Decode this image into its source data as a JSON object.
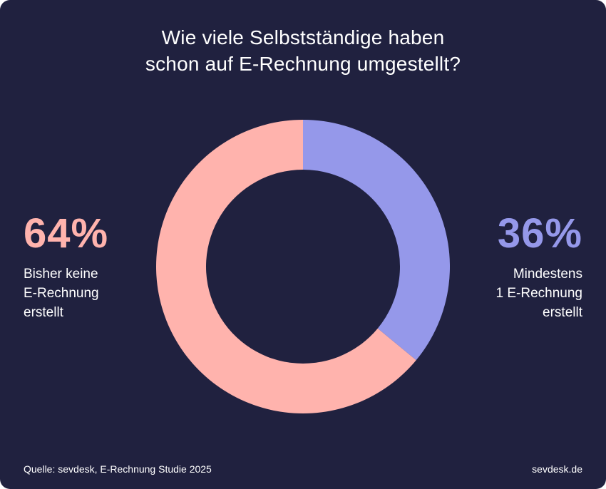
{
  "colors": {
    "background": "#20213f",
    "text": "#ffffff",
    "none_segment": "#ffb3ad",
    "some_segment": "#9598ea"
  },
  "chart_data": {
    "type": "pie",
    "variant": "donut",
    "title": "Wie viele Selbstständige haben schon auf E-Rechnung umgestellt?",
    "title_lines": [
      "Wie viele Selbstständige haben",
      "schon auf E-Rechnung umgestellt?"
    ],
    "start": "top, clockwise",
    "segments": [
      {
        "name": "Mindestens 1 E-Rechnung erstellt",
        "value": 36,
        "label": "36%",
        "description_lines": [
          "Mindestens",
          "1 E-Rechnung",
          "erstellt"
        ],
        "color": "#9598ea"
      },
      {
        "name": "Bisher keine E-Rechnung erstellt",
        "value": 64,
        "label": "64%",
        "description_lines": [
          "Bisher keine",
          "E-Rechnung",
          "erstellt"
        ],
        "color": "#ffb3ad"
      }
    ]
  },
  "footer": {
    "source": "Quelle: sevdesk, E-Rechnung Studie 2025",
    "brand": "sevdesk.de"
  }
}
